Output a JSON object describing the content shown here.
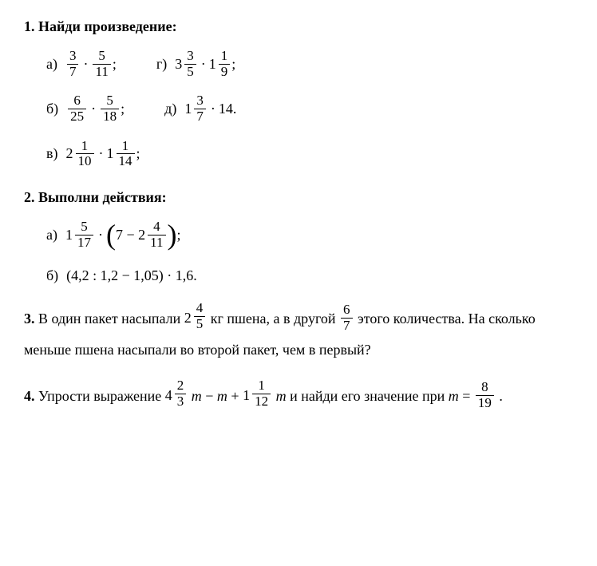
{
  "problems": {
    "p1": {
      "number": "1.",
      "title": "Найди произведение:",
      "items": {
        "a": {
          "label": "а)",
          "n1": "3",
          "d1": "7",
          "n2": "5",
          "d2": "11"
        },
        "g": {
          "label": "г)",
          "w1": "3",
          "n1": "3",
          "d1": "5",
          "w2": "1",
          "n2": "1",
          "d2": "9"
        },
        "b": {
          "label": "б)",
          "n1": "6",
          "d1": "25",
          "n2": "5",
          "d2": "18"
        },
        "d": {
          "label": "д)",
          "w1": "1",
          "n1": "3",
          "d1": "7",
          "int": "14"
        },
        "v": {
          "label": "в)",
          "w1": "2",
          "n1": "1",
          "d1": "10",
          "w2": "1",
          "n2": "1",
          "d2": "14"
        }
      }
    },
    "p2": {
      "number": "2.",
      "title": "Выполни действия:",
      "items": {
        "a": {
          "label": "а)",
          "w1": "1",
          "n1": "5",
          "d1": "17",
          "int": "7",
          "w2": "2",
          "n2": "4",
          "d2": "11"
        },
        "b": {
          "label": "б)",
          "expr": "(4,2 : 1,2 − 1,05) · 1,6."
        }
      }
    },
    "p3": {
      "number": "3.",
      "text_parts": {
        "t1": "В один пакет насыпали ",
        "w1": "2",
        "n1": "4",
        "d1": "5",
        "t2": " кг пшена, а в другой ",
        "n2": "6",
        "d2": "7",
        "t3": " этого количества. На сколько меньше пшена насыпали во второй пакет, чем в первый?"
      }
    },
    "p4": {
      "number": "4.",
      "text_parts": {
        "t1": "Упрости выражение ",
        "w1": "4",
        "n1": "2",
        "d1": "3",
        "var1": "m",
        "minus": " − ",
        "var2": "m",
        "plus": " + ",
        "w2": "1",
        "n2": "1",
        "d2": "12",
        "var3": "m",
        "t2": " и найди его значение при ",
        "var4": "m",
        "eq": " = ",
        "n3": "8",
        "d3": "19",
        "period": "."
      }
    }
  }
}
